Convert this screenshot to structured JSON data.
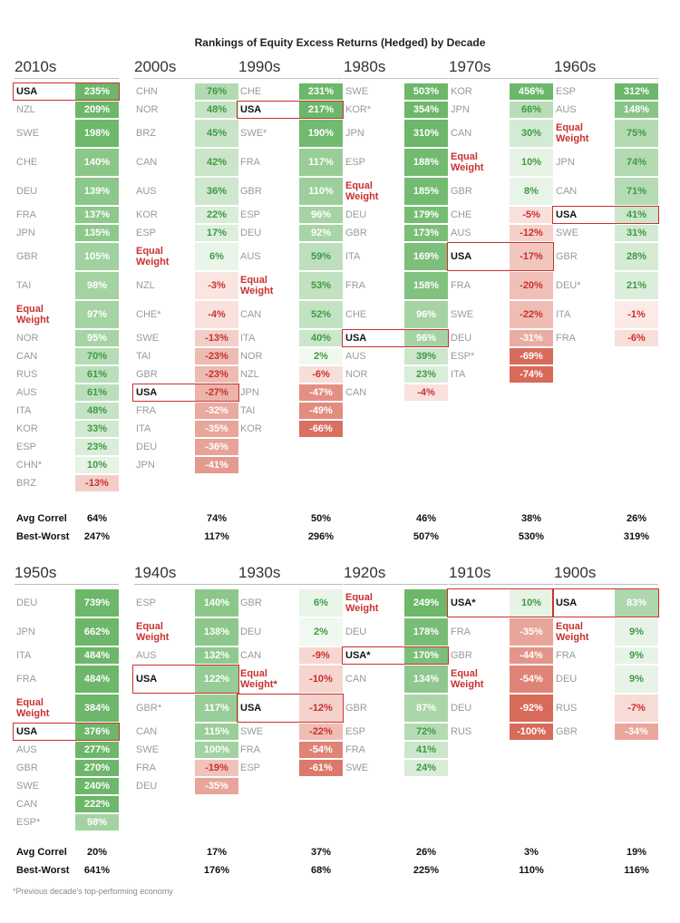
{
  "chart_data": {
    "type": "table",
    "title": "Rankings of Equity Excess Returns (Hedged) by Decade",
    "stat_labels": {
      "avg_correl": "Avg Correl",
      "best_worst": "Best-Worst"
    },
    "footnote": "*Previous decade's top-performing economy",
    "decades": [
      {
        "name": "2010s",
        "avg_correl": "64%",
        "best_worst": "247%",
        "rows": [
          {
            "country": "USA",
            "value": 235
          },
          {
            "country": "NZL",
            "value": 209
          },
          {
            "country": "SWE",
            "value": 198
          },
          {
            "country": "CHE",
            "value": 140
          },
          {
            "country": "DEU",
            "value": 139
          },
          {
            "country": "FRA",
            "value": 137
          },
          {
            "country": "JPN",
            "value": 135
          },
          {
            "country": "GBR",
            "value": 105
          },
          {
            "country": "TAI",
            "value": 98
          },
          {
            "country": "Equal Weight",
            "value": 97
          },
          {
            "country": "NOR",
            "value": 95
          },
          {
            "country": "CAN",
            "value": 70
          },
          {
            "country": "RUS",
            "value": 61
          },
          {
            "country": "AUS",
            "value": 61
          },
          {
            "country": "ITA",
            "value": 48
          },
          {
            "country": "KOR",
            "value": 33
          },
          {
            "country": "ESP",
            "value": 23
          },
          {
            "country": "CHN*",
            "value": 10
          },
          {
            "country": "BRZ",
            "value": -13
          }
        ]
      },
      {
        "name": "2000s",
        "avg_correl": "74%",
        "best_worst": "117%",
        "rows": [
          {
            "country": "CHN",
            "value": 76
          },
          {
            "country": "NOR",
            "value": 48
          },
          {
            "country": "BRZ",
            "value": 45
          },
          {
            "country": "CAN",
            "value": 42
          },
          {
            "country": "AUS",
            "value": 36
          },
          {
            "country": "KOR",
            "value": 22
          },
          {
            "country": "ESP",
            "value": 17
          },
          {
            "country": "Equal Weight",
            "value": 6
          },
          {
            "country": "NZL",
            "value": -3
          },
          {
            "country": "CHE*",
            "value": -4
          },
          {
            "country": "SWE",
            "value": -13
          },
          {
            "country": "TAI",
            "value": -23
          },
          {
            "country": "GBR",
            "value": -23
          },
          {
            "country": "USA",
            "value": -27
          },
          {
            "country": "FRA",
            "value": -32
          },
          {
            "country": "ITA",
            "value": -35
          },
          {
            "country": "DEU",
            "value": -36
          },
          {
            "country": "JPN",
            "value": -41
          }
        ]
      },
      {
        "name": "1990s",
        "avg_correl": "50%",
        "best_worst": "296%",
        "rows": [
          {
            "country": "CHE",
            "value": 231
          },
          {
            "country": "USA",
            "value": 217
          },
          {
            "country": "SWE*",
            "value": 190
          },
          {
            "country": "FRA",
            "value": 117
          },
          {
            "country": "GBR",
            "value": 110
          },
          {
            "country": "ESP",
            "value": 96
          },
          {
            "country": "DEU",
            "value": 92
          },
          {
            "country": "AUS",
            "value": 59
          },
          {
            "country": "Equal Weight",
            "value": 53
          },
          {
            "country": "CAN",
            "value": 52
          },
          {
            "country": "ITA",
            "value": 40
          },
          {
            "country": "NOR",
            "value": 2
          },
          {
            "country": "NZL",
            "value": -6
          },
          {
            "country": "JPN",
            "value": -47
          },
          {
            "country": "TAI",
            "value": -49
          },
          {
            "country": "KOR",
            "value": -66
          }
        ]
      },
      {
        "name": "1980s",
        "avg_correl": "46%",
        "best_worst": "507%",
        "rows": [
          {
            "country": "SWE",
            "value": 503
          },
          {
            "country": "KOR*",
            "value": 354
          },
          {
            "country": "JPN",
            "value": 310
          },
          {
            "country": "ESP",
            "value": 188
          },
          {
            "country": "Equal Weight",
            "value": 185
          },
          {
            "country": "DEU",
            "value": 179
          },
          {
            "country": "GBR",
            "value": 173
          },
          {
            "country": "ITA",
            "value": 169
          },
          {
            "country": "FRA",
            "value": 158
          },
          {
            "country": "CHE",
            "value": 96
          },
          {
            "country": "USA",
            "value": 96
          },
          {
            "country": "AUS",
            "value": 39
          },
          {
            "country": "NOR",
            "value": 23
          },
          {
            "country": "CAN",
            "value": -4
          }
        ]
      },
      {
        "name": "1970s",
        "avg_correl": "38%",
        "best_worst": "530%",
        "rows": [
          {
            "country": "KOR",
            "value": 456
          },
          {
            "country": "JPN",
            "value": 66
          },
          {
            "country": "CAN",
            "value": 30
          },
          {
            "country": "Equal Weight",
            "value": 10
          },
          {
            "country": "GBR",
            "value": 8
          },
          {
            "country": "CHE",
            "value": -5
          },
          {
            "country": "AUS",
            "value": -12
          },
          {
            "country": "USA",
            "value": -17
          },
          {
            "country": "FRA",
            "value": -20
          },
          {
            "country": "SWE",
            "value": -22
          },
          {
            "country": "DEU",
            "value": -31
          },
          {
            "country": "ESP*",
            "value": -69
          },
          {
            "country": "ITA",
            "value": -74
          }
        ]
      },
      {
        "name": "1960s",
        "avg_correl": "26%",
        "best_worst": "319%",
        "rows": [
          {
            "country": "ESP",
            "value": 312
          },
          {
            "country": "AUS",
            "value": 148
          },
          {
            "country": "Equal Weight",
            "value": 75
          },
          {
            "country": "JPN",
            "value": 74
          },
          {
            "country": "CAN",
            "value": 71
          },
          {
            "country": "USA",
            "value": 41
          },
          {
            "country": "SWE",
            "value": 31
          },
          {
            "country": "GBR",
            "value": 28
          },
          {
            "country": "DEU*",
            "value": 21
          },
          {
            "country": "ITA",
            "value": -1
          },
          {
            "country": "FRA",
            "value": -6
          }
        ]
      },
      {
        "name": "1950s",
        "avg_correl": "20%",
        "best_worst": "641%",
        "rows": [
          {
            "country": "DEU",
            "value": 739
          },
          {
            "country": "JPN",
            "value": 662
          },
          {
            "country": "ITA",
            "value": 484
          },
          {
            "country": "FRA",
            "value": 484
          },
          {
            "country": "Equal Weight",
            "value": 384
          },
          {
            "country": "USA",
            "value": 376
          },
          {
            "country": "AUS",
            "value": 277
          },
          {
            "country": "GBR",
            "value": 270
          },
          {
            "country": "SWE",
            "value": 240
          },
          {
            "country": "CAN",
            "value": 222
          },
          {
            "country": "ESP*",
            "value": 98
          }
        ]
      },
      {
        "name": "1940s",
        "avg_correl": "17%",
        "best_worst": "176%",
        "rows": [
          {
            "country": "ESP",
            "value": 140
          },
          {
            "country": "Equal Weight",
            "value": 138
          },
          {
            "country": "AUS",
            "value": 132
          },
          {
            "country": "USA",
            "value": 122
          },
          {
            "country": "GBR*",
            "value": 117
          },
          {
            "country": "CAN",
            "value": 115
          },
          {
            "country": "SWE",
            "value": 100
          },
          {
            "country": "FRA",
            "value": -19
          },
          {
            "country": "DEU",
            "value": -35
          }
        ]
      },
      {
        "name": "1930s",
        "avg_correl": "37%",
        "best_worst": "68%",
        "rows": [
          {
            "country": "GBR",
            "value": 6
          },
          {
            "country": "DEU",
            "value": 2
          },
          {
            "country": "CAN",
            "value": -9
          },
          {
            "country": "Equal Weight*",
            "value": -10
          },
          {
            "country": "USA",
            "value": -12
          },
          {
            "country": "SWE",
            "value": -22
          },
          {
            "country": "FRA",
            "value": -54
          },
          {
            "country": "ESP",
            "value": -61
          }
        ]
      },
      {
        "name": "1920s",
        "avg_correl": "26%",
        "best_worst": "225%",
        "rows": [
          {
            "country": "Equal Weight",
            "value": 249
          },
          {
            "country": "DEU",
            "value": 178
          },
          {
            "country": "USA*",
            "value": 170
          },
          {
            "country": "CAN",
            "value": 134
          },
          {
            "country": "GBR",
            "value": 87
          },
          {
            "country": "ESP",
            "value": 72
          },
          {
            "country": "FRA",
            "value": 41
          },
          {
            "country": "SWE",
            "value": 24
          }
        ]
      },
      {
        "name": "1910s",
        "avg_correl": "3%",
        "best_worst": "110%",
        "rows": [
          {
            "country": "USA*",
            "value": 10
          },
          {
            "country": "FRA",
            "value": -35
          },
          {
            "country": "GBR",
            "value": -44
          },
          {
            "country": "Equal Weight",
            "value": -54
          },
          {
            "country": "DEU",
            "value": -92
          },
          {
            "country": "RUS",
            "value": -100
          }
        ]
      },
      {
        "name": "1900s",
        "avg_correl": "19%",
        "best_worst": "116%",
        "rows": [
          {
            "country": "USA",
            "value": 83
          },
          {
            "country": "Equal Weight",
            "value": 9
          },
          {
            "country": "FRA",
            "value": 9
          },
          {
            "country": "DEU",
            "value": 9
          },
          {
            "country": "RUS",
            "value": -7
          },
          {
            "country": "GBR",
            "value": -34
          }
        ]
      }
    ]
  }
}
